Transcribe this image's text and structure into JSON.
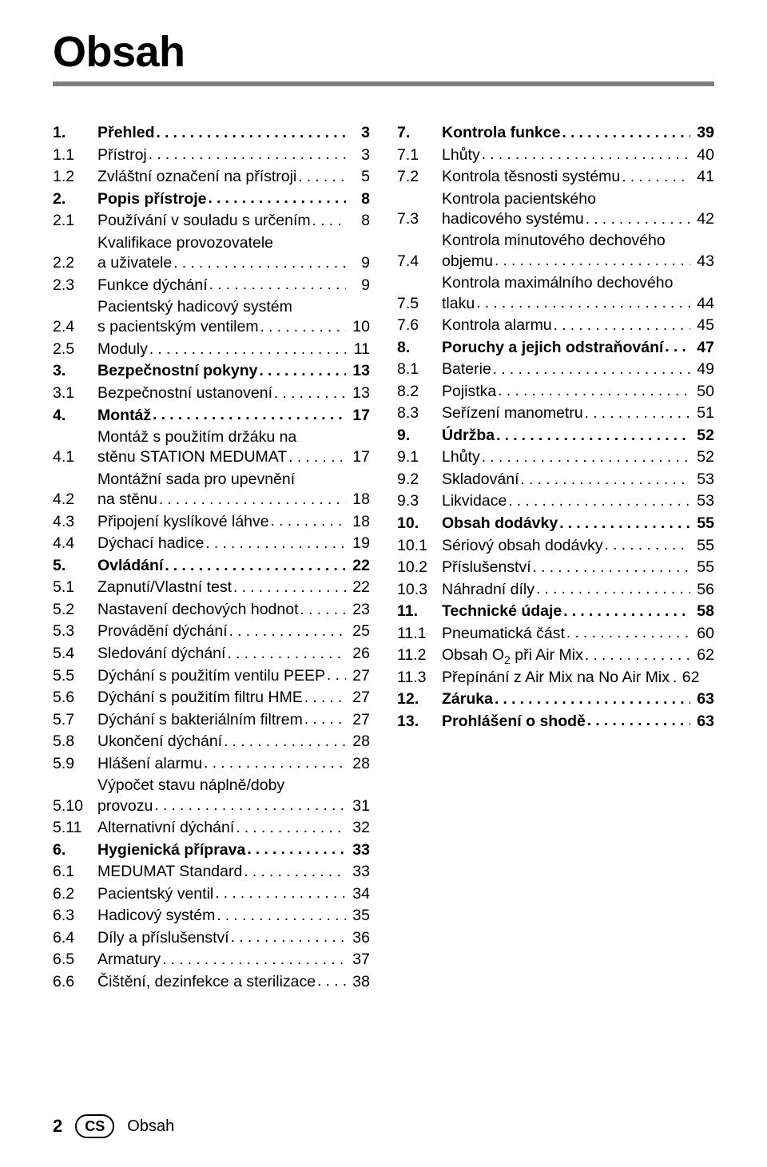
{
  "title": "Obsah",
  "footer": {
    "page_number": "2",
    "lang": "CS",
    "section": "Obsah"
  },
  "left": [
    {
      "num": "1.",
      "label": "Přehled",
      "page": "3",
      "bold": true
    },
    {
      "num": "1.1",
      "label": "Přístroj",
      "page": "3"
    },
    {
      "num": "1.2",
      "label": "Zvláštní označení na přístroji",
      "page": "5"
    },
    {
      "num": "2.",
      "label": "Popis přístroje",
      "page": "8",
      "bold": true
    },
    {
      "num": "2.1",
      "label": "Používání v souladu s určením",
      "page": "8"
    },
    {
      "num": "2.2",
      "label": "Kvalifikace provozovatele",
      "extra": "a uživatele",
      "page": "9"
    },
    {
      "num": "2.3",
      "label": "Funkce dýchání",
      "page": "9"
    },
    {
      "num": "2.4",
      "label": "Pacientský hadicový systém",
      "extra": "s pacientským ventilem",
      "page": "10"
    },
    {
      "num": "2.5",
      "label": "Moduly",
      "page": "11"
    },
    {
      "num": "3.",
      "label": "Bezpečnostní pokyny",
      "page": "13",
      "bold": true
    },
    {
      "num": "3.1",
      "label": "Bezpečnostní ustanovení",
      "page": "13"
    },
    {
      "num": "4.",
      "label": "Montáž",
      "page": "17",
      "bold": true
    },
    {
      "num": "4.1",
      "label": "Montáž s použitím držáku na",
      "extra": "stěnu STATION MEDUMAT",
      "page": "17"
    },
    {
      "num": "4.2",
      "label": "Montážní sada pro upevnění",
      "extra": "na stěnu",
      "page": "18"
    },
    {
      "num": "4.3",
      "label": "Připojení kyslíkové láhve",
      "page": "18"
    },
    {
      "num": "4.4",
      "label": "Dýchací hadice",
      "page": "19"
    },
    {
      "num": "5.",
      "label": "Ovládání",
      "page": "22",
      "bold": true
    },
    {
      "num": "5.1",
      "label": "Zapnutí/Vlastní test",
      "page": "22"
    },
    {
      "num": "5.2",
      "label": "Nastavení dechových hodnot",
      "page": "23"
    },
    {
      "num": "5.3",
      "label": "Provádění dýchání",
      "page": "25"
    },
    {
      "num": "5.4",
      "label": "Sledování dýchání",
      "page": "26"
    },
    {
      "num": "5.5",
      "label": "Dýchání s použitím ventilu PEEP",
      "page": "27",
      "tight": true
    },
    {
      "num": "5.6",
      "label": "Dýchání s použitím filtru HME",
      "page": "27",
      "tight": true
    },
    {
      "num": "5.7",
      "label": "Dýchání s bakteriálním filtrem",
      "page": "27",
      "tight": true
    },
    {
      "num": "5.8",
      "label": "Ukončení dýchání",
      "page": "28"
    },
    {
      "num": "5.9",
      "label": "Hlášení alarmu",
      "page": "28"
    },
    {
      "num": "5.10",
      "label": "Výpočet stavu náplně/doby",
      "extra": "provozu",
      "page": "31"
    },
    {
      "num": "5.11",
      "label": "Alternativní dýchání",
      "page": "32"
    },
    {
      "num": "6.",
      "label": "Hygienická příprava",
      "page": "33",
      "bold": true
    },
    {
      "num": "6.1",
      "label": "MEDUMAT Standard",
      "page": "33"
    },
    {
      "num": "6.2",
      "label": "Pacientský ventil",
      "page": "34"
    },
    {
      "num": "6.3",
      "label": "Hadicový systém",
      "page": "35"
    },
    {
      "num": "6.4",
      "label": "Díly a příslušenství",
      "page": "36"
    },
    {
      "num": "6.5",
      "label": "Armatury",
      "page": "37"
    },
    {
      "num": "6.6",
      "label": "Čištění, dezinfekce a sterilizace",
      "page": "38",
      "tight": true
    }
  ],
  "right": [
    {
      "num": "7.",
      "label": "Kontrola funkce",
      "page": "39",
      "bold": true
    },
    {
      "num": "7.1",
      "label": "Lhůty",
      "page": "40"
    },
    {
      "num": "7.2",
      "label": "Kontrola těsnosti systému",
      "page": "41"
    },
    {
      "num": "7.3",
      "label": "Kontrola pacientského",
      "extra": "hadicového systému",
      "page": "42"
    },
    {
      "num": "7.4",
      "label": "Kontrola minutového dechového",
      "extra": "objemu",
      "page": "43"
    },
    {
      "num": "7.5",
      "label": "Kontrola maximálního dechového",
      "extra": "tlaku",
      "page": "44"
    },
    {
      "num": "7.6",
      "label": "Kontrola alarmu",
      "page": "45"
    },
    {
      "num": "8.",
      "label": "Poruchy a jejich odstraňování",
      "page": "47",
      "bold": true,
      "tight": true
    },
    {
      "num": "8.1",
      "label": "Baterie",
      "page": "49"
    },
    {
      "num": "8.2",
      "label": "Pojistka",
      "page": "50"
    },
    {
      "num": "8.3",
      "label": "Seřízení manometru",
      "page": "51"
    },
    {
      "num": "9.",
      "label": "Údržba",
      "page": "52",
      "bold": true
    },
    {
      "num": "9.1",
      "label": "Lhůty",
      "page": "52"
    },
    {
      "num": "9.2",
      "label": "Skladování",
      "page": "53"
    },
    {
      "num": "9.3",
      "label": "Likvidace",
      "page": "53"
    },
    {
      "num": "10.",
      "label": "Obsah dodávky",
      "page": "55",
      "bold": true
    },
    {
      "num": "10.1",
      "label": "Sériový obsah dodávky",
      "page": "55"
    },
    {
      "num": "10.2",
      "label": "Příslušenství",
      "page": "55"
    },
    {
      "num": "10.3",
      "label": "Náhradní díly",
      "page": "56"
    },
    {
      "num": "11.",
      "label": "Technické údaje",
      "page": "58",
      "bold": true
    },
    {
      "num": "11.1",
      "label": "Pneumatická část",
      "page": "60"
    },
    {
      "num": "11.2",
      "label_html": "Obsah O<sub>2</sub> při Air Mix",
      "page": "62"
    },
    {
      "num": "11.3",
      "label": "Přepínání z Air Mix na No Air Mix",
      "page": "62",
      "tight": true,
      "noleader": true
    },
    {
      "num": "12.",
      "label": "Záruka",
      "page": "63",
      "bold": true
    },
    {
      "num": "13.",
      "label": "Prohlášení o shodě",
      "page": "63",
      "bold": true
    }
  ]
}
